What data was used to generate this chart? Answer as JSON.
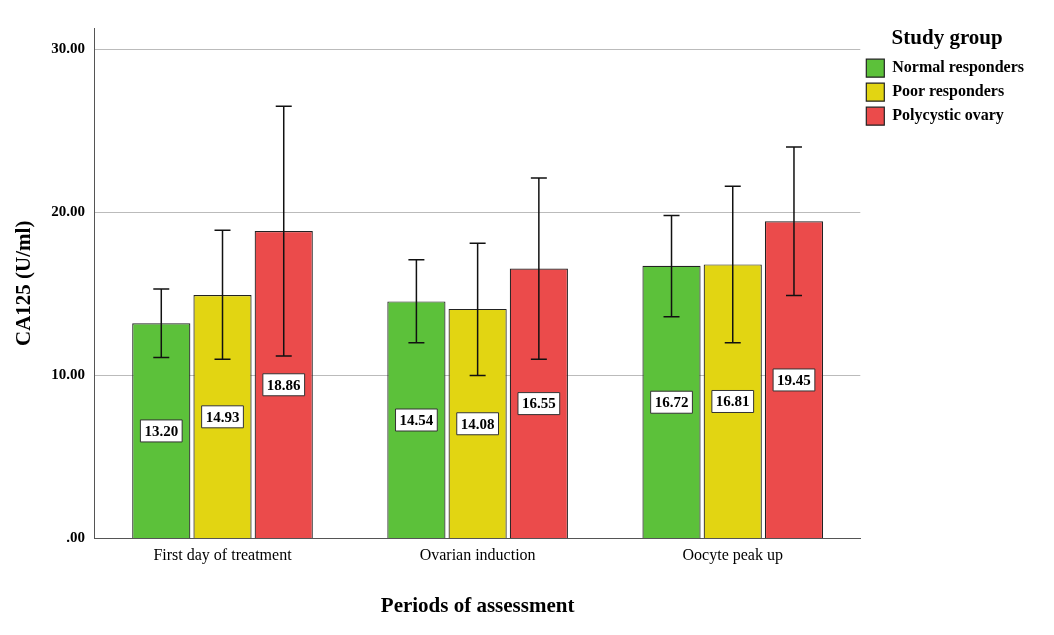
{
  "chart_data": {
    "type": "bar",
    "xlabel": "Periods of assessment",
    "ylabel": "CA125 (U/ml)",
    "legend_title": "Study group",
    "categories": [
      "First day of treatment",
      "Ovarian induction",
      "Oocyte peak up"
    ],
    "series": [
      {
        "name": "Normal responders",
        "color": "#5cc13a",
        "values": [
          13.2,
          14.54,
          16.72
        ],
        "value_labels": [
          "13.20",
          "14.54",
          "16.72"
        ],
        "errors": [
          [
            11.1,
            15.3
          ],
          [
            12.0,
            17.1
          ],
          [
            13.6,
            19.8
          ]
        ]
      },
      {
        "name": "Poor responders",
        "color": "#e2d512",
        "values": [
          14.93,
          14.08,
          16.81
        ],
        "value_labels": [
          "14.93",
          "14.08",
          "16.81"
        ],
        "errors": [
          [
            11.0,
            18.9
          ],
          [
            10.0,
            18.1
          ],
          [
            12.0,
            21.6
          ]
        ]
      },
      {
        "name": "Polycystic ovary",
        "color": "#eb4b4b",
        "values": [
          18.86,
          16.55,
          19.45
        ],
        "value_labels": [
          "18.86",
          "16.55",
          "19.45"
        ],
        "errors": [
          [
            11.2,
            26.5
          ],
          [
            11.0,
            22.1
          ],
          [
            14.9,
            24.0
          ]
        ]
      }
    ],
    "ylim": [
      0,
      31.3
    ],
    "yticks": [
      {
        "value": 0,
        "label": ".00"
      },
      {
        "value": 10,
        "label": "10.00"
      },
      {
        "value": 20,
        "label": "20.00"
      },
      {
        "value": 30,
        "label": "30.00"
      }
    ],
    "grid": "y",
    "legend": "top right"
  }
}
